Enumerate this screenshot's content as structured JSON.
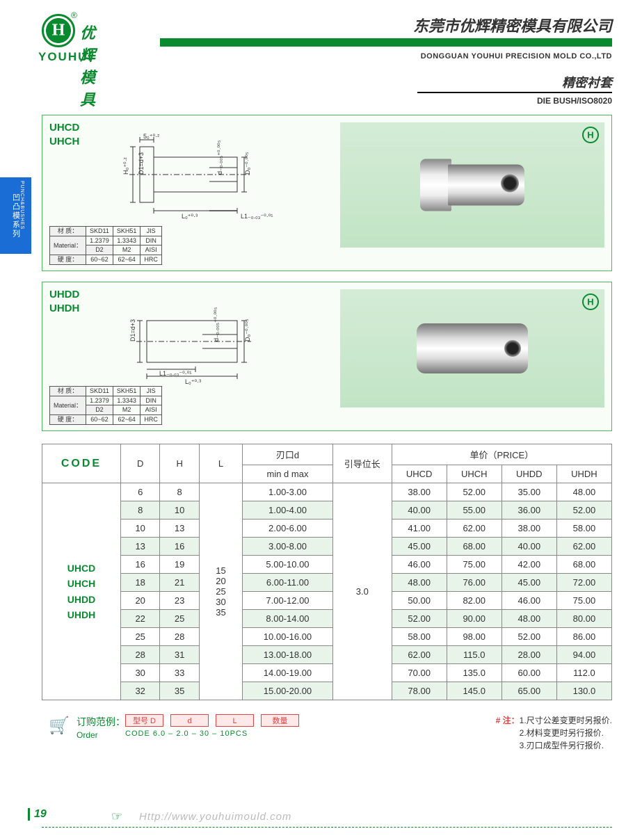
{
  "header": {
    "logo_cn": "优辉模具",
    "logo_en": "YOUHUI",
    "company_cn": "东莞市优辉精密模具有限公司",
    "company_en": "DONGGUAN YOUHUI PRECISION MOLD CO.,LTD",
    "category_cn": "精密衬套",
    "category_en": "DIE BUSH/ISO8020"
  },
  "side_tab": {
    "cn": "凹凸模系列",
    "en": "PUNCH&BUSHES"
  },
  "panel1": {
    "codes": [
      "UHCD",
      "UHCH"
    ],
    "dims": {
      "top": "5₀⁺⁰·²",
      "H": "H₀⁺⁰·²",
      "D1": "D1=d+3",
      "L": "L₀⁺⁰·³",
      "L1": "L1₋₀.₀₃⁻⁰·⁰¹",
      "d": "d₋₀.₀₀₅⁺⁰·⁰⁰⁵",
      "D": "D₀⁻⁰·⁰⁰⁵"
    }
  },
  "panel2": {
    "codes": [
      "UHDD",
      "UHDH"
    ],
    "dims": {
      "D1": "D1=d+3",
      "L1": "L1₋₀.₀₃⁻⁰·⁰¹",
      "L": "L₀⁺⁰·³",
      "d": "d₋₀.₀₀₅⁺⁰·⁰⁰⁵",
      "D": "D₀⁻⁰·⁰⁰⁵"
    }
  },
  "material": {
    "hdr": [
      "材 质：",
      "SKD11",
      "SKH51",
      "JIS"
    ],
    "r1": [
      "Material：",
      "1.2379",
      "1.3343",
      "DIN"
    ],
    "r2": [
      "",
      "D2",
      "M2",
      "AISI"
    ],
    "r3": [
      "硬 度：",
      "60~62",
      "62~64",
      "HRC"
    ]
  },
  "table": {
    "hdr": {
      "code": "CODE",
      "D": "D",
      "H": "H",
      "L": "L",
      "d_group": "刃口d",
      "d_sub": "min d max",
      "guide": "引导位长",
      "price": "单价（PRICE）",
      "p1": "UHCD",
      "p2": "UHCH",
      "p3": "UHDD",
      "p4": "UHDH"
    },
    "code_cell": "UHCD\nUHCH\nUHDD\nUHDH",
    "L_cell": "15\n20\n25\n30\n35",
    "guide_cell": "3.0",
    "rows": [
      {
        "D": "6",
        "H": "8",
        "d": "1.00-3.00",
        "p": [
          "38.00",
          "52.00",
          "35.00",
          "48.00"
        ],
        "alt": false
      },
      {
        "D": "8",
        "H": "10",
        "d": "1.00-4.00",
        "p": [
          "40.00",
          "55.00",
          "36.00",
          "52.00"
        ],
        "alt": true
      },
      {
        "D": "10",
        "H": "13",
        "d": "2.00-6.00",
        "p": [
          "41.00",
          "62.00",
          "38.00",
          "58.00"
        ],
        "alt": false
      },
      {
        "D": "13",
        "H": "16",
        "d": "3.00-8.00",
        "p": [
          "45.00",
          "68.00",
          "40.00",
          "62.00"
        ],
        "alt": true
      },
      {
        "D": "16",
        "H": "19",
        "d": "5.00-10.00",
        "p": [
          "46.00",
          "75.00",
          "42.00",
          "68.00"
        ],
        "alt": false
      },
      {
        "D": "18",
        "H": "21",
        "d": "6.00-11.00",
        "p": [
          "48.00",
          "76.00",
          "45.00",
          "72.00"
        ],
        "alt": true
      },
      {
        "D": "20",
        "H": "23",
        "d": "7.00-12.00",
        "p": [
          "50.00",
          "82.00",
          "46.00",
          "75.00"
        ],
        "alt": false
      },
      {
        "D": "22",
        "H": "25",
        "d": "8.00-14.00",
        "p": [
          "52.00",
          "90.00",
          "48.00",
          "80.00"
        ],
        "alt": true
      },
      {
        "D": "25",
        "H": "28",
        "d": "10.00-16.00",
        "p": [
          "58.00",
          "98.00",
          "52.00",
          "86.00"
        ],
        "alt": false
      },
      {
        "D": "28",
        "H": "31",
        "d": "13.00-18.00",
        "p": [
          "62.00",
          "115.0",
          "28.00",
          "94.00"
        ],
        "alt": true
      },
      {
        "D": "30",
        "H": "33",
        "d": "14.00-19.00",
        "p": [
          "70.00",
          "135.0",
          "60.00",
          "112.0"
        ],
        "alt": false
      },
      {
        "D": "32",
        "H": "35",
        "d": "15.00-20.00",
        "p": [
          "78.00",
          "145.0",
          "65.00",
          "130.0"
        ],
        "alt": true
      }
    ]
  },
  "order": {
    "label_cn": "订购范例：",
    "label_en": "Order",
    "fields": [
      "型号 D",
      "d",
      "L",
      "数量"
    ],
    "codes": "CODE 6.0 – 2.0 –   30   – 10PCS"
  },
  "notes": {
    "hdr": "# 注：",
    "n1": "1.尺寸公差变更时另报价.",
    "n2": "2.材料变更时另行报价.",
    "n3": "3.刃口成型件另行报价."
  },
  "footer": {
    "page": "19",
    "url": "Http://www.youhuimould.com"
  }
}
